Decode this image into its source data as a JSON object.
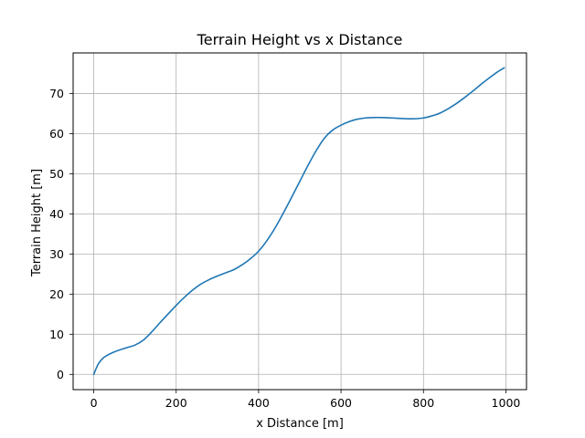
{
  "chart_data": {
    "type": "line",
    "title": "Terrain Height vs x Distance",
    "xlabel": "x Distance [m]",
    "ylabel": "Terrain Height [m]",
    "xlim": [
      -50,
      1050
    ],
    "ylim": [
      -3.8,
      80.1
    ],
    "xticks": [
      0,
      200,
      400,
      600,
      800,
      1000
    ],
    "yticks": [
      0,
      10,
      20,
      30,
      40,
      50,
      60,
      70
    ],
    "grid": true,
    "legend": "none",
    "series": [
      {
        "color": "#1f77b4",
        "x": [
          0,
          10,
          20,
          30,
          50,
          75,
          100,
          120,
          140,
          160,
          180,
          200,
          220,
          240,
          260,
          280,
          300,
          320,
          340,
          360,
          380,
          400,
          420,
          440,
          460,
          480,
          500,
          520,
          540,
          560,
          580,
          600,
          620,
          640,
          660,
          680,
          700,
          720,
          740,
          760,
          780,
          800,
          820,
          840,
          860,
          880,
          900,
          920,
          940,
          960,
          980,
          996
        ],
        "y": [
          0,
          2.4,
          3.8,
          4.6,
          5.6,
          6.5,
          7.3,
          8.5,
          10.5,
          12.8,
          15.0,
          17.2,
          19.2,
          21.0,
          22.5,
          23.6,
          24.5,
          25.3,
          26.1,
          27.3,
          28.8,
          30.7,
          33.3,
          36.5,
          40.2,
          44.1,
          48.1,
          52.1,
          55.8,
          58.9,
          60.9,
          62.1,
          63.0,
          63.6,
          63.9,
          64.0,
          64.0,
          63.9,
          63.8,
          63.7,
          63.7,
          63.9,
          64.4,
          65.1,
          66.2,
          67.5,
          69.0,
          70.6,
          72.3,
          73.9,
          75.4,
          76.4
        ]
      }
    ]
  }
}
